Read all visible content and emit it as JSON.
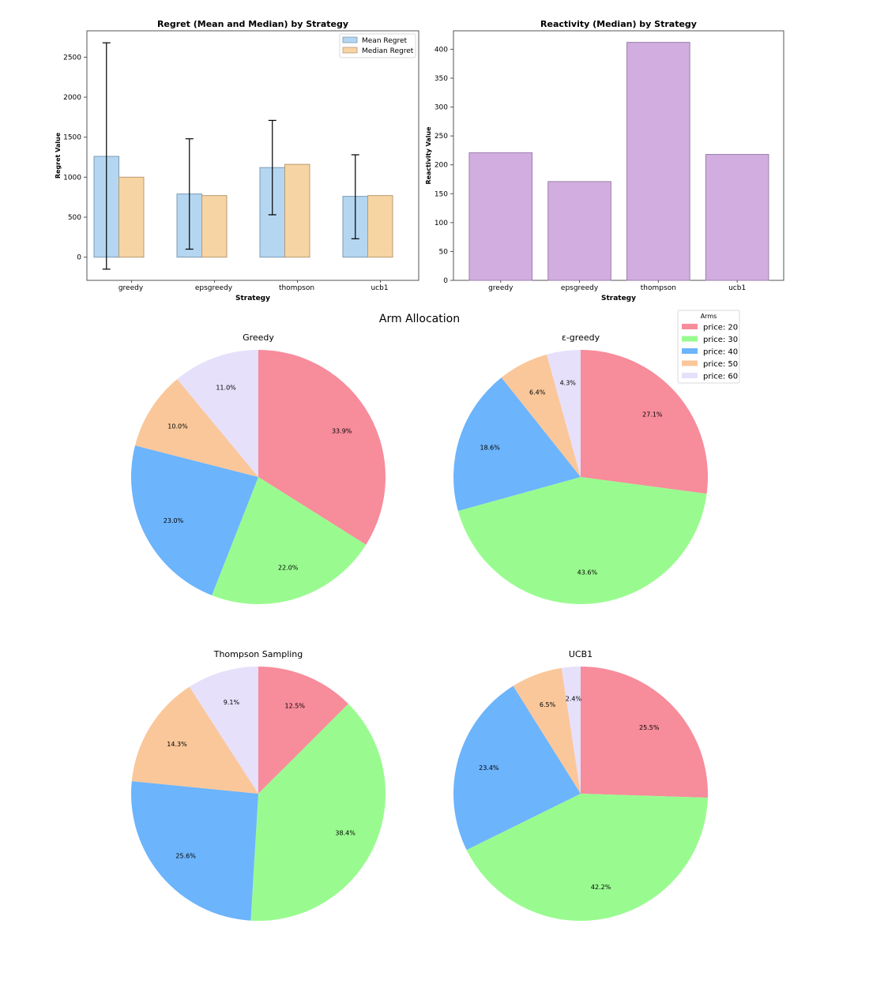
{
  "figure_title": "Arm Allocation",
  "chart_data": [
    {
      "type": "bar",
      "title": "Regret (Mean and Median) by Strategy",
      "xlabel": "Strategy",
      "ylabel": "Regret Value",
      "categories": [
        "greedy",
        "epsgreedy",
        "thompson",
        "ucb1"
      ],
      "series": [
        {
          "name": "Mean Regret",
          "values": [
            1260,
            790,
            1120,
            760
          ],
          "error_low": [
            -150,
            100,
            530,
            230
          ],
          "error_high": [
            2680,
            1480,
            1710,
            1280
          ],
          "color": "#b5d6f0"
        },
        {
          "name": "Median Regret",
          "values": [
            1000,
            770,
            1160,
            770
          ],
          "color": "#f7d4a3"
        }
      ],
      "yticks": [
        0,
        500,
        1000,
        1500,
        2000,
        2500
      ],
      "ylim": [
        -290,
        2830
      ],
      "legend": "top-right"
    },
    {
      "type": "bar",
      "title": "Reactivity (Median) by Strategy",
      "xlabel": "Strategy",
      "ylabel": "Reactivity Value",
      "categories": [
        "greedy",
        "epsgreedy",
        "thompson",
        "ucb1"
      ],
      "values": [
        221,
        171,
        412,
        218
      ],
      "color": "#d2aee0",
      "yticks": [
        0,
        50,
        100,
        150,
        200,
        250,
        300,
        350,
        400
      ],
      "ylim": [
        0,
        432
      ]
    },
    {
      "type": "pie",
      "title": "Greedy",
      "labels": [
        "price: 20",
        "price: 30",
        "price: 40",
        "price: 50",
        "price: 60"
      ],
      "values": [
        33.9,
        22.0,
        23.0,
        10.0,
        11.0
      ],
      "value_labels": [
        "33.9%",
        "22.0%",
        "23.0%",
        "10.0%",
        "11.0%"
      ]
    },
    {
      "type": "pie",
      "title": "ε-greedy",
      "labels": [
        "price: 20",
        "price: 30",
        "price: 40",
        "price: 50",
        "price: 60"
      ],
      "values": [
        27.1,
        43.6,
        18.6,
        6.4,
        4.3
      ],
      "value_labels": [
        "27.1%",
        "43.6%",
        "18.6%",
        "6.4%",
        "4.3%"
      ]
    },
    {
      "type": "pie",
      "title": "Thompson Sampling",
      "labels": [
        "price: 20",
        "price: 30",
        "price: 40",
        "price: 50",
        "price: 60"
      ],
      "values": [
        12.5,
        38.4,
        25.6,
        14.3,
        9.1
      ],
      "value_labels": [
        "12.5%",
        "38.4%",
        "25.6%",
        "14.3%",
        "9.1%"
      ]
    },
    {
      "type": "pie",
      "title": "UCB1",
      "labels": [
        "price: 20",
        "price: 30",
        "price: 40",
        "price: 50",
        "price: 60"
      ],
      "values": [
        25.5,
        42.2,
        23.4,
        6.5,
        2.4
      ],
      "value_labels": [
        "25.5%",
        "42.2%",
        "23.4%",
        "6.5%",
        "2.4%"
      ]
    }
  ],
  "pie_legend": {
    "title": "Arms",
    "items": [
      "price: 20",
      "price: 30",
      "price: 40",
      "price: 50",
      "price: 60"
    ],
    "colors": [
      "#f78c9b",
      "#99fb8f",
      "#6cb4fc",
      "#fac79a",
      "#e6e0fb"
    ]
  }
}
